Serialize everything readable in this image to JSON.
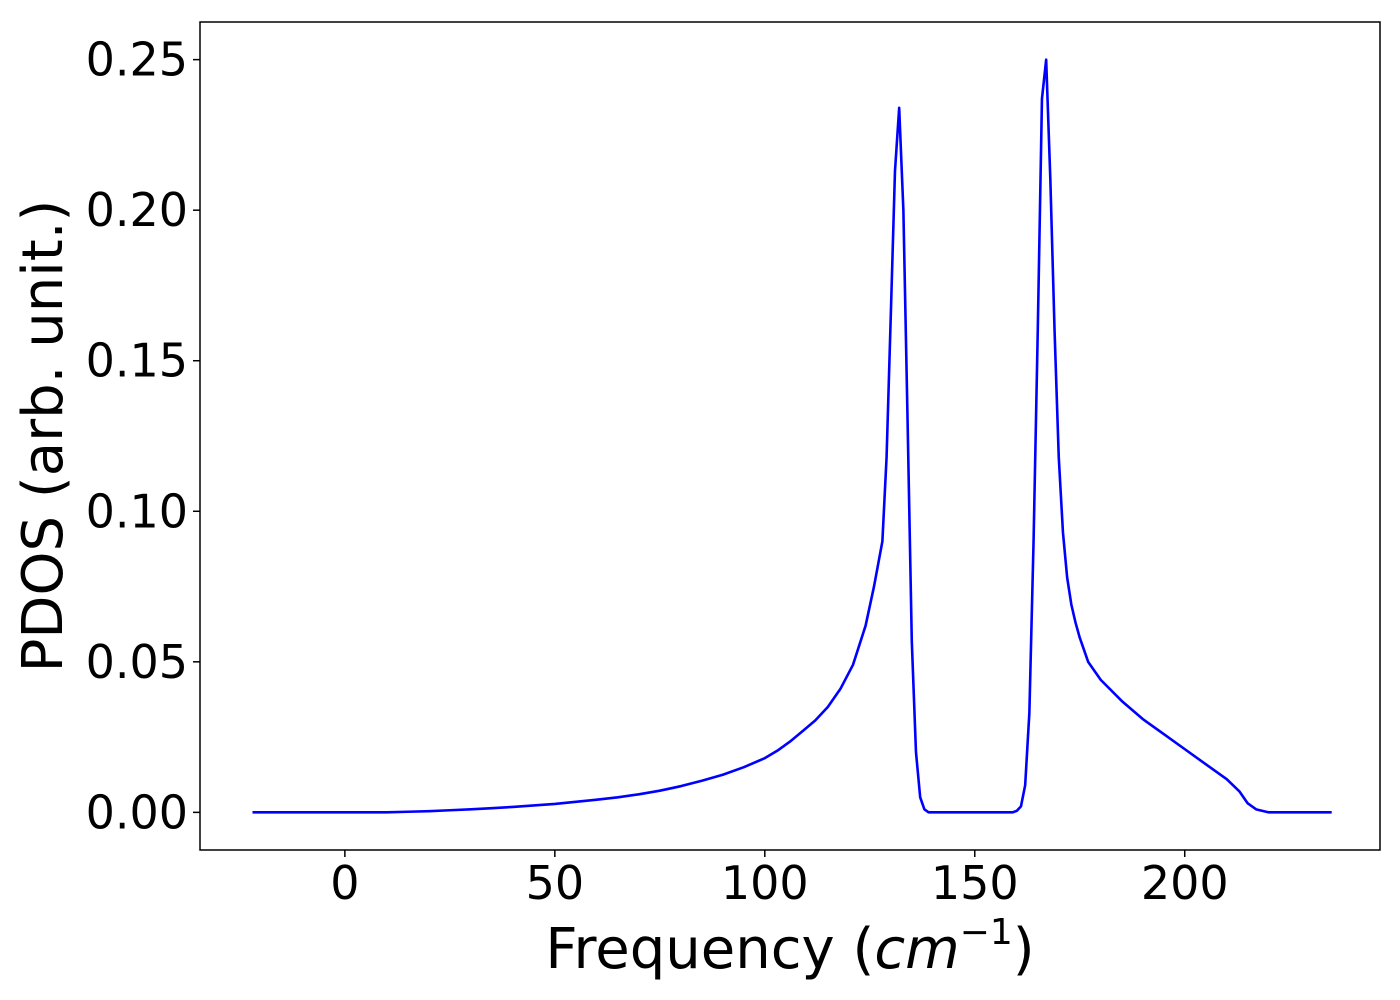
{
  "chart_data": {
    "type": "line",
    "title": "",
    "xlabel_prefix": "Frequency (",
    "xlabel_math": "cm",
    "xlabel_exp": "−1",
    "xlabel_suffix": ")",
    "ylabel": "PDOS (arb. unit.)",
    "xlim": [
      -34.5,
      246.5
    ],
    "ylim": [
      -0.0125,
      0.2625
    ],
    "xticks": [
      0,
      50,
      100,
      150,
      200
    ],
    "xtick_labels": [
      "0",
      "50",
      "100",
      "150",
      "200"
    ],
    "yticks": [
      0.0,
      0.05,
      0.1,
      0.15,
      0.2,
      0.25
    ],
    "ytick_labels": [
      "0.00",
      "0.05",
      "0.10",
      "0.15",
      "0.20",
      "0.25"
    ],
    "grid": false,
    "series": [
      {
        "color": "#0000ff",
        "x": [
          -22,
          0,
          5,
          10,
          15,
          20,
          25,
          30,
          35,
          40,
          45,
          50,
          55,
          60,
          65,
          70,
          75,
          80,
          85,
          90,
          95,
          100,
          103,
          106,
          109,
          112,
          115,
          118,
          121,
          124,
          126,
          128,
          129,
          130,
          131,
          132,
          133,
          134,
          135,
          136,
          137,
          138,
          139,
          140,
          141,
          142,
          145,
          150,
          155,
          159,
          160,
          161,
          162,
          163,
          164,
          165,
          166,
          167,
          168,
          169,
          170,
          171,
          172,
          173,
          174,
          175,
          177,
          180,
          185,
          190,
          195,
          200,
          205,
          210,
          213,
          215,
          217,
          220,
          225,
          235
        ],
        "y": [
          0.0,
          0.0,
          0.0,
          0.0,
          0.0002,
          0.0004,
          0.0007,
          0.001,
          0.0014,
          0.0018,
          0.0023,
          0.0028,
          0.0035,
          0.0042,
          0.005,
          0.006,
          0.0072,
          0.0087,
          0.0105,
          0.0125,
          0.015,
          0.018,
          0.0205,
          0.0235,
          0.027,
          0.0305,
          0.035,
          0.041,
          0.049,
          0.062,
          0.075,
          0.09,
          0.118,
          0.165,
          0.213,
          0.234,
          0.2,
          0.13,
          0.057,
          0.02,
          0.005,
          0.001,
          0.0,
          0.0,
          0.0,
          0.0,
          0.0,
          0.0,
          0.0,
          0.0,
          0.0005,
          0.002,
          0.009,
          0.033,
          0.09,
          0.16,
          0.237,
          0.25,
          0.21,
          0.16,
          0.118,
          0.093,
          0.078,
          0.069,
          0.063,
          0.058,
          0.05,
          0.044,
          0.037,
          0.031,
          0.026,
          0.021,
          0.016,
          0.011,
          0.007,
          0.003,
          0.001,
          0.0,
          0.0,
          0.0
        ]
      }
    ]
  }
}
